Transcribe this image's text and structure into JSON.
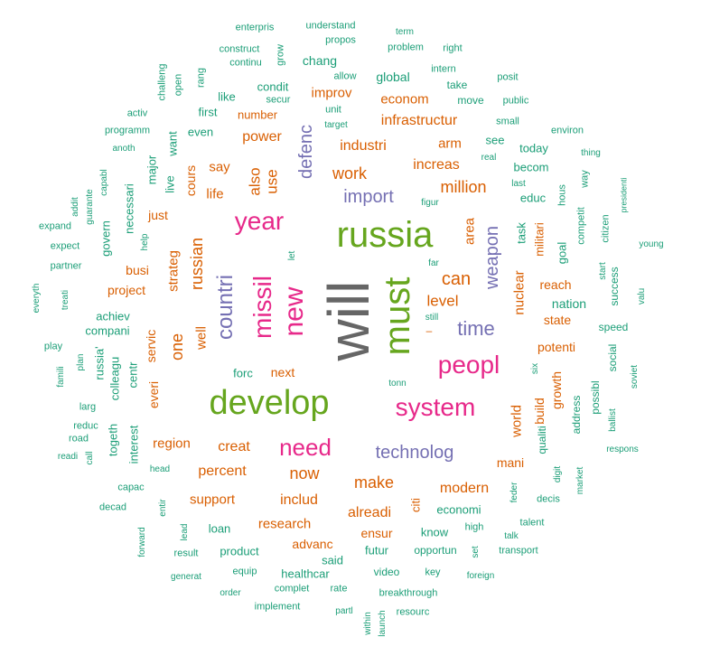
{
  "colors": {
    "teal": "#1b9e77",
    "orange": "#d95f02",
    "purple": "#7570b3",
    "magenta": "#e7298a",
    "green": "#66a61e",
    "gray": "#666666"
  },
  "words": [
    {
      "text": "will",
      "c": "gray",
      "s": 64,
      "r": 1
    },
    {
      "text": "russia",
      "c": "green",
      "s": 40,
      "r": 0
    },
    {
      "text": "develop",
      "c": "green",
      "s": 38,
      "r": 0
    },
    {
      "text": "must",
      "c": "green",
      "s": 40,
      "r": 1
    },
    {
      "text": "year",
      "c": "magenta",
      "s": 28,
      "r": 0
    },
    {
      "text": "missil",
      "c": "magenta",
      "s": 28,
      "r": 1
    },
    {
      "text": "new",
      "c": "magenta",
      "s": 30,
      "r": 1
    },
    {
      "text": "peopl",
      "c": "magenta",
      "s": 28,
      "r": 0
    },
    {
      "text": "system",
      "c": "magenta",
      "s": 28,
      "r": 0
    },
    {
      "text": "need",
      "c": "magenta",
      "s": 26,
      "r": 0
    },
    {
      "text": "countri",
      "c": "purple",
      "s": 24,
      "r": 1
    },
    {
      "text": "time",
      "c": "purple",
      "s": 22,
      "r": 0
    },
    {
      "text": "technolog",
      "c": "purple",
      "s": 20,
      "r": 0
    },
    {
      "text": "import",
      "c": "purple",
      "s": 20,
      "r": 0
    },
    {
      "text": "defenc",
      "c": "purple",
      "s": 20,
      "r": 1
    },
    {
      "text": "weapon",
      "c": "purple",
      "s": 20,
      "r": 1
    },
    {
      "text": "can",
      "c": "orange",
      "s": 20,
      "r": 0
    },
    {
      "text": "work",
      "c": "orange",
      "s": 18,
      "r": 0
    },
    {
      "text": "million",
      "c": "orange",
      "s": 18,
      "r": 0
    },
    {
      "text": "increas",
      "c": "orange",
      "s": 16,
      "r": 0
    },
    {
      "text": "industri",
      "c": "orange",
      "s": 16,
      "r": 0
    },
    {
      "text": "infrastructur",
      "c": "orange",
      "s": 16,
      "r": 0
    },
    {
      "text": "econom",
      "c": "orange",
      "s": 15,
      "r": 0
    },
    {
      "text": "improv",
      "c": "orange",
      "s": 15,
      "r": 0
    },
    {
      "text": "power",
      "c": "orange",
      "s": 16,
      "r": 0
    },
    {
      "text": "arm",
      "c": "orange",
      "s": 15,
      "r": 0
    },
    {
      "text": "level",
      "c": "orange",
      "s": 17,
      "r": 0
    },
    {
      "text": "make",
      "c": "orange",
      "s": 18,
      "r": 0
    },
    {
      "text": "now",
      "c": "orange",
      "s": 18,
      "r": 0
    },
    {
      "text": "creat",
      "c": "orange",
      "s": 16,
      "r": 0
    },
    {
      "text": "percent",
      "c": "orange",
      "s": 16,
      "r": 0
    },
    {
      "text": "includ",
      "c": "orange",
      "s": 16,
      "r": 0
    },
    {
      "text": "modern",
      "c": "orange",
      "s": 16,
      "r": 0
    },
    {
      "text": "alreadi",
      "c": "orange",
      "s": 16,
      "r": 0
    },
    {
      "text": "research",
      "c": "orange",
      "s": 15,
      "r": 0
    },
    {
      "text": "support",
      "c": "orange",
      "s": 15,
      "r": 0
    },
    {
      "text": "region",
      "c": "orange",
      "s": 15,
      "r": 0
    },
    {
      "text": "one",
      "c": "orange",
      "s": 18,
      "r": 1
    },
    {
      "text": "russian",
      "c": "orange",
      "s": 18,
      "r": 1
    },
    {
      "text": "also",
      "c": "orange",
      "s": 17,
      "r": 1
    },
    {
      "text": "use",
      "c": "orange",
      "s": 17,
      "r": 1
    },
    {
      "text": "say",
      "c": "orange",
      "s": 15,
      "r": 0
    },
    {
      "text": "life",
      "c": "orange",
      "s": 15,
      "r": 0
    },
    {
      "text": "strateg",
      "c": "orange",
      "s": 15,
      "r": 1
    },
    {
      "text": "busi",
      "c": "orange",
      "s": 14,
      "r": 0
    },
    {
      "text": "project",
      "c": "orange",
      "s": 14,
      "r": 0
    },
    {
      "text": "well",
      "c": "orange",
      "s": 15,
      "r": 1
    },
    {
      "text": "servic",
      "c": "orange",
      "s": 14,
      "r": 1
    },
    {
      "text": "cours",
      "c": "orange",
      "s": 14,
      "r": 1
    },
    {
      "text": "just",
      "c": "orange",
      "s": 14,
      "r": 0
    },
    {
      "text": "number",
      "c": "orange",
      "s": 13,
      "r": 0
    },
    {
      "text": "nuclear",
      "c": "orange",
      "s": 15,
      "r": 1
    },
    {
      "text": "area",
      "c": "orange",
      "s": 15,
      "r": 1
    },
    {
      "text": "reach",
      "c": "orange",
      "s": 14,
      "r": 0
    },
    {
      "text": "state",
      "c": "orange",
      "s": 14,
      "r": 0
    },
    {
      "text": "potenti",
      "c": "orange",
      "s": 14,
      "r": 0
    },
    {
      "text": "world",
      "c": "orange",
      "s": 15,
      "r": 1
    },
    {
      "text": "build",
      "c": "orange",
      "s": 14,
      "r": 1
    },
    {
      "text": "growth",
      "c": "orange",
      "s": 14,
      "r": 1
    },
    {
      "text": "mani",
      "c": "orange",
      "s": 14,
      "r": 0
    },
    {
      "text": "ensur",
      "c": "orange",
      "s": 14,
      "r": 0
    },
    {
      "text": "advanc",
      "c": "orange",
      "s": 14,
      "r": 0
    },
    {
      "text": "next",
      "c": "orange",
      "s": 14,
      "r": 0
    },
    {
      "text": "everi",
      "c": "orange",
      "s": 14,
      "r": 1
    },
    {
      "text": "militari",
      "c": "orange",
      "s": 13,
      "r": 1
    },
    {
      "text": "citi",
      "c": "orange",
      "s": 13,
      "r": 1
    },
    {
      "text": "nation",
      "c": "teal",
      "s": 14,
      "r": 0
    },
    {
      "text": "task",
      "c": "teal",
      "s": 13,
      "r": 1
    },
    {
      "text": "goal",
      "c": "teal",
      "s": 13,
      "r": 1
    },
    {
      "text": "becom",
      "c": "teal",
      "s": 13,
      "r": 0
    },
    {
      "text": "educ",
      "c": "teal",
      "s": 13,
      "r": 0
    },
    {
      "text": "today",
      "c": "teal",
      "s": 13,
      "r": 0
    },
    {
      "text": "see",
      "c": "teal",
      "s": 13,
      "r": 0
    },
    {
      "text": "global",
      "c": "teal",
      "s": 14,
      "r": 0
    },
    {
      "text": "chang",
      "c": "teal",
      "s": 14,
      "r": 0
    },
    {
      "text": "condit",
      "c": "teal",
      "s": 13,
      "r": 0
    },
    {
      "text": "like",
      "c": "teal",
      "s": 13,
      "r": 0
    },
    {
      "text": "first",
      "c": "teal",
      "s": 13,
      "r": 0
    },
    {
      "text": "even",
      "c": "teal",
      "s": 13,
      "r": 0
    },
    {
      "text": "want",
      "c": "teal",
      "s": 13,
      "r": 1
    },
    {
      "text": "live",
      "c": "teal",
      "s": 13,
      "r": 1
    },
    {
      "text": "major",
      "c": "teal",
      "s": 13,
      "r": 1
    },
    {
      "text": "necessari",
      "c": "teal",
      "s": 13,
      "r": 1
    },
    {
      "text": "govern",
      "c": "teal",
      "s": 13,
      "r": 1
    },
    {
      "text": "achiev",
      "c": "teal",
      "s": 13,
      "r": 0
    },
    {
      "text": "compani",
      "c": "teal",
      "s": 13,
      "r": 0
    },
    {
      "text": "colleagu",
      "c": "teal",
      "s": 13,
      "r": 1
    },
    {
      "text": "russia'",
      "c": "teal",
      "s": 13,
      "r": 1
    },
    {
      "text": "centr",
      "c": "teal",
      "s": 13,
      "r": 1
    },
    {
      "text": "togeth",
      "c": "teal",
      "s": 13,
      "r": 1
    },
    {
      "text": "interest",
      "c": "teal",
      "s": 13,
      "r": 1
    },
    {
      "text": "forc",
      "c": "teal",
      "s": 13,
      "r": 0
    },
    {
      "text": "product",
      "c": "teal",
      "s": 13,
      "r": 0
    },
    {
      "text": "loan",
      "c": "teal",
      "s": 13,
      "r": 0
    },
    {
      "text": "healthcar",
      "c": "teal",
      "s": 13,
      "r": 0
    },
    {
      "text": "said",
      "c": "teal",
      "s": 13,
      "r": 0
    },
    {
      "text": "futur",
      "c": "teal",
      "s": 13,
      "r": 0
    },
    {
      "text": "know",
      "c": "teal",
      "s": 13,
      "r": 0
    },
    {
      "text": "economi",
      "c": "teal",
      "s": 13,
      "r": 0
    },
    {
      "text": "video",
      "c": "teal",
      "s": 12,
      "r": 0
    },
    {
      "text": "opportun",
      "c": "teal",
      "s": 12,
      "r": 0
    },
    {
      "text": "qualiti",
      "c": "teal",
      "s": 12,
      "r": 1
    },
    {
      "text": "address",
      "c": "teal",
      "s": 12,
      "r": 1
    },
    {
      "text": "possibl",
      "c": "teal",
      "s": 12,
      "r": 1
    },
    {
      "text": "social",
      "c": "teal",
      "s": 12,
      "r": 1
    },
    {
      "text": "success",
      "c": "teal",
      "s": 12,
      "r": 1
    },
    {
      "text": "speed",
      "c": "teal",
      "s": 12,
      "r": 0
    },
    {
      "text": "competit",
      "c": "teal",
      "s": 11,
      "r": 1
    },
    {
      "text": "citizen",
      "c": "teal",
      "s": 11,
      "r": 1
    },
    {
      "text": "hous",
      "c": "teal",
      "s": 11,
      "r": 1
    },
    {
      "text": "way",
      "c": "teal",
      "s": 11,
      "r": 1
    },
    {
      "text": "environ",
      "c": "teal",
      "s": 11,
      "r": 0
    },
    {
      "text": "small",
      "c": "teal",
      "s": 11,
      "r": 0
    },
    {
      "text": "public",
      "c": "teal",
      "s": 11,
      "r": 0
    },
    {
      "text": "move",
      "c": "teal",
      "s": 12,
      "r": 0
    },
    {
      "text": "take",
      "c": "teal",
      "s": 12,
      "r": 0
    },
    {
      "text": "intern",
      "c": "teal",
      "s": 11,
      "r": 0
    },
    {
      "text": "posit",
      "c": "teal",
      "s": 11,
      "r": 0
    },
    {
      "text": "problem",
      "c": "teal",
      "s": 11,
      "r": 0
    },
    {
      "text": "right",
      "c": "teal",
      "s": 11,
      "r": 0
    },
    {
      "text": "term",
      "c": "teal",
      "s": 10,
      "r": 0
    },
    {
      "text": "understand",
      "c": "teal",
      "s": 11,
      "r": 0
    },
    {
      "text": "propos",
      "c": "teal",
      "s": 11,
      "r": 0
    },
    {
      "text": "enterpris",
      "c": "teal",
      "s": 11,
      "r": 0
    },
    {
      "text": "construct",
      "c": "teal",
      "s": 11,
      "r": 0
    },
    {
      "text": "continu",
      "c": "teal",
      "s": 11,
      "r": 0
    },
    {
      "text": "grow",
      "c": "teal",
      "s": 11,
      "r": 1
    },
    {
      "text": "allow",
      "c": "teal",
      "s": 11,
      "r": 0
    },
    {
      "text": "unit",
      "c": "teal",
      "s": 11,
      "r": 0
    },
    {
      "text": "secur",
      "c": "teal",
      "s": 11,
      "r": 0
    },
    {
      "text": "target",
      "c": "teal",
      "s": 10,
      "r": 0
    },
    {
      "text": "rang",
      "c": "teal",
      "s": 11,
      "r": 1
    },
    {
      "text": "open",
      "c": "teal",
      "s": 11,
      "r": 1
    },
    {
      "text": "challeng",
      "c": "teal",
      "s": 11,
      "r": 1
    },
    {
      "text": "activ",
      "c": "teal",
      "s": 11,
      "r": 0
    },
    {
      "text": "programm",
      "c": "teal",
      "s": 11,
      "r": 0
    },
    {
      "text": "anoth",
      "c": "teal",
      "s": 10,
      "r": 0
    },
    {
      "text": "capabl",
      "c": "teal",
      "s": 10,
      "r": 1
    },
    {
      "text": "guarante",
      "c": "teal",
      "s": 10,
      "r": 1
    },
    {
      "text": "addit",
      "c": "teal",
      "s": 10,
      "r": 1
    },
    {
      "text": "expand",
      "c": "teal",
      "s": 11,
      "r": 0
    },
    {
      "text": "help",
      "c": "teal",
      "s": 10,
      "r": 1
    },
    {
      "text": "expect",
      "c": "teal",
      "s": 11,
      "r": 0
    },
    {
      "text": "partner",
      "c": "teal",
      "s": 11,
      "r": 0
    },
    {
      "text": "everyth",
      "c": "teal",
      "s": 10,
      "r": 1
    },
    {
      "text": "treati",
      "c": "teal",
      "s": 10,
      "r": 1
    },
    {
      "text": "play",
      "c": "teal",
      "s": 11,
      "r": 0
    },
    {
      "text": "plan",
      "c": "teal",
      "s": 10,
      "r": 1
    },
    {
      "text": "famili",
      "c": "teal",
      "s": 10,
      "r": 1
    },
    {
      "text": "larg",
      "c": "teal",
      "s": 11,
      "r": 0
    },
    {
      "text": "reduc",
      "c": "teal",
      "s": 11,
      "r": 0
    },
    {
      "text": "road",
      "c": "teal",
      "s": 11,
      "r": 0
    },
    {
      "text": "call",
      "c": "teal",
      "s": 10,
      "r": 1
    },
    {
      "text": "readi",
      "c": "teal",
      "s": 10,
      "r": 0
    },
    {
      "text": "head",
      "c": "teal",
      "s": 10,
      "r": 0
    },
    {
      "text": "capac",
      "c": "teal",
      "s": 11,
      "r": 0
    },
    {
      "text": "decad",
      "c": "teal",
      "s": 11,
      "r": 0
    },
    {
      "text": "entir",
      "c": "teal",
      "s": 10,
      "r": 1
    },
    {
      "text": "forward",
      "c": "teal",
      "s": 10,
      "r": 1
    },
    {
      "text": "lead",
      "c": "teal",
      "s": 10,
      "r": 1
    },
    {
      "text": "result",
      "c": "teal",
      "s": 11,
      "r": 0
    },
    {
      "text": "generat",
      "c": "teal",
      "s": 10,
      "r": 0
    },
    {
      "text": "equip",
      "c": "teal",
      "s": 11,
      "r": 0
    },
    {
      "text": "order",
      "c": "teal",
      "s": 10,
      "r": 0
    },
    {
      "text": "complet",
      "c": "teal",
      "s": 11,
      "r": 0
    },
    {
      "text": "implement",
      "c": "teal",
      "s": 11,
      "r": 0
    },
    {
      "text": "rate",
      "c": "teal",
      "s": 11,
      "r": 0
    },
    {
      "text": "partl",
      "c": "teal",
      "s": 10,
      "r": 0
    },
    {
      "text": "within",
      "c": "teal",
      "s": 10,
      "r": 1
    },
    {
      "text": "launch",
      "c": "teal",
      "s": 10,
      "r": 1
    },
    {
      "text": "resourc",
      "c": "teal",
      "s": 11,
      "r": 0
    },
    {
      "text": "breakthrough",
      "c": "teal",
      "s": 11,
      "r": 0
    },
    {
      "text": "key",
      "c": "teal",
      "s": 11,
      "r": 0
    },
    {
      "text": "foreign",
      "c": "teal",
      "s": 10,
      "r": 0
    },
    {
      "text": "set",
      "c": "teal",
      "s": 10,
      "r": 1
    },
    {
      "text": "high",
      "c": "teal",
      "s": 11,
      "r": 0
    },
    {
      "text": "transport",
      "c": "teal",
      "s": 11,
      "r": 0
    },
    {
      "text": "talk",
      "c": "teal",
      "s": 10,
      "r": 0
    },
    {
      "text": "talent",
      "c": "teal",
      "s": 11,
      "r": 0
    },
    {
      "text": "feder",
      "c": "teal",
      "s": 10,
      "r": 1
    },
    {
      "text": "decis",
      "c": "teal",
      "s": 11,
      "r": 0
    },
    {
      "text": "digit",
      "c": "teal",
      "s": 10,
      "r": 1
    },
    {
      "text": "market",
      "c": "teal",
      "s": 10,
      "r": 1
    },
    {
      "text": "respons",
      "c": "teal",
      "s": 10,
      "r": 0
    },
    {
      "text": "ballist",
      "c": "teal",
      "s": 10,
      "r": 1
    },
    {
      "text": "soviet",
      "c": "teal",
      "s": 10,
      "r": 1
    },
    {
      "text": "valu",
      "c": "teal",
      "s": 10,
      "r": 1
    },
    {
      "text": "start",
      "c": "teal",
      "s": 10,
      "r": 1
    },
    {
      "text": "young",
      "c": "teal",
      "s": 10,
      "r": 0
    },
    {
      "text": "presidenti",
      "c": "teal",
      "s": 9,
      "r": 1
    },
    {
      "text": "thing",
      "c": "teal",
      "s": 10,
      "r": 0
    },
    {
      "text": "real",
      "c": "teal",
      "s": 10,
      "r": 0
    },
    {
      "text": "last",
      "c": "teal",
      "s": 10,
      "r": 0
    },
    {
      "text": "figur",
      "c": "teal",
      "s": 10,
      "r": 0
    },
    {
      "text": "far",
      "c": "teal",
      "s": 10,
      "r": 0
    },
    {
      "text": "still",
      "c": "teal",
      "s": 10,
      "r": 0
    },
    {
      "text": "let",
      "c": "teal",
      "s": 10,
      "r": 1
    },
    {
      "text": "tonn",
      "c": "teal",
      "s": 10,
      "r": 0
    },
    {
      "text": "six",
      "c": "teal",
      "s": 10,
      "r": 1
    },
    {
      "text": "–",
      "c": "orange",
      "s": 12,
      "r": 0
    }
  ]
}
